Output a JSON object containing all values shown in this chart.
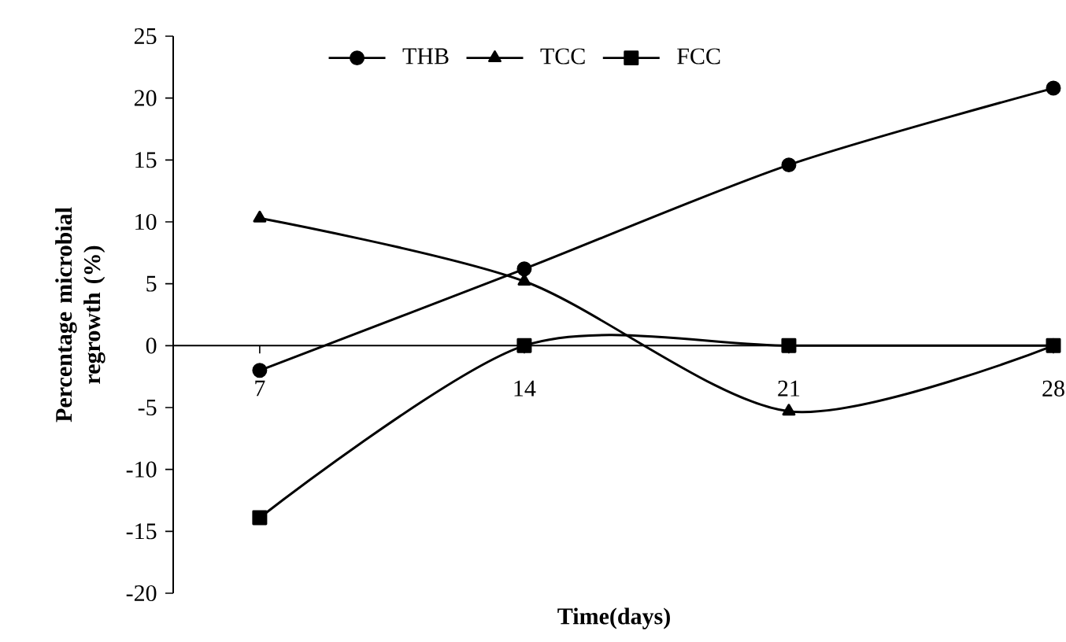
{
  "chart_data": {
    "type": "line",
    "xlabel": "Time(days)",
    "ylabel": "Percentage microbial regrowth (%)",
    "categories": [
      "7",
      "14",
      "21",
      "28"
    ],
    "series": [
      {
        "name": "THB",
        "color": "#000000",
        "marker": "circle",
        "values": [
          -2.0,
          6.2,
          14.6,
          20.8
        ]
      },
      {
        "name": "TCC",
        "color": "#000000",
        "marker": "triangle",
        "values": [
          10.3,
          5.2,
          -5.3,
          0
        ]
      },
      {
        "name": "FCC",
        "color": "#000000",
        "marker": "square",
        "values": [
          -13.9,
          0,
          0,
          0
        ]
      }
    ],
    "ylim": [
      -20,
      25
    ],
    "yticks": [
      -20,
      -15,
      -10,
      -5,
      0,
      5,
      10,
      15,
      20,
      25
    ],
    "grid": false,
    "legend": "top",
    "line_style": "solid"
  }
}
